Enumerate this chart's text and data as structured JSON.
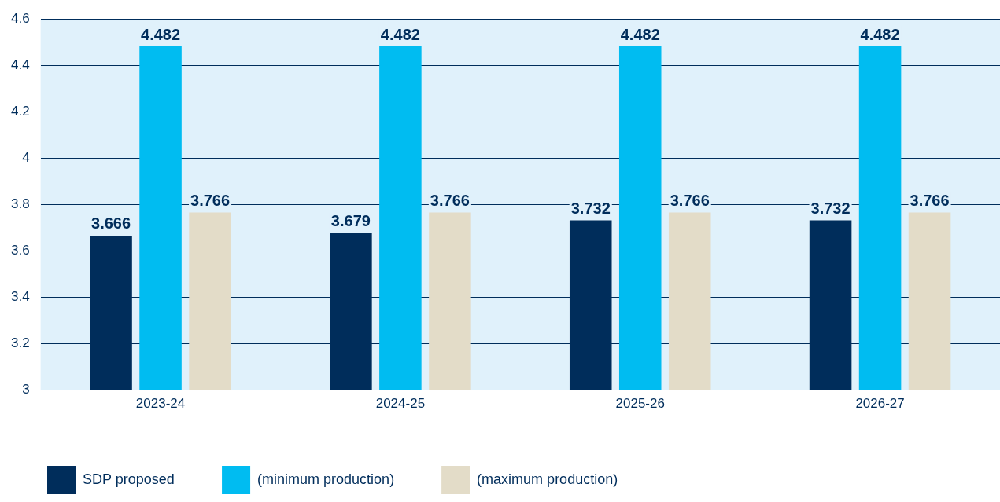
{
  "chart_data": {
    "type": "bar",
    "categories": [
      "2023-24",
      "2024-25",
      "2025-26",
      "2026-27"
    ],
    "series": [
      {
        "name": "SDP proposed",
        "color": "#002d5b",
        "values": [
          3.666,
          3.679,
          3.732,
          3.732
        ]
      },
      {
        "name": "(minimum production)",
        "color": "#00bcf1",
        "values": [
          4.482,
          4.482,
          4.482,
          4.482
        ]
      },
      {
        "name": "(maximum production)",
        "color": "#e3dcc8",
        "values": [
          3.766,
          3.766,
          3.766,
          3.766
        ]
      }
    ],
    "ylim": [
      3,
      4.6
    ],
    "yticks": [
      3,
      3.2,
      3.4,
      3.6,
      3.8,
      4,
      4.2,
      4.4,
      4.6
    ],
    "grid": "y",
    "legend": "bottom",
    "data_labels": true
  }
}
